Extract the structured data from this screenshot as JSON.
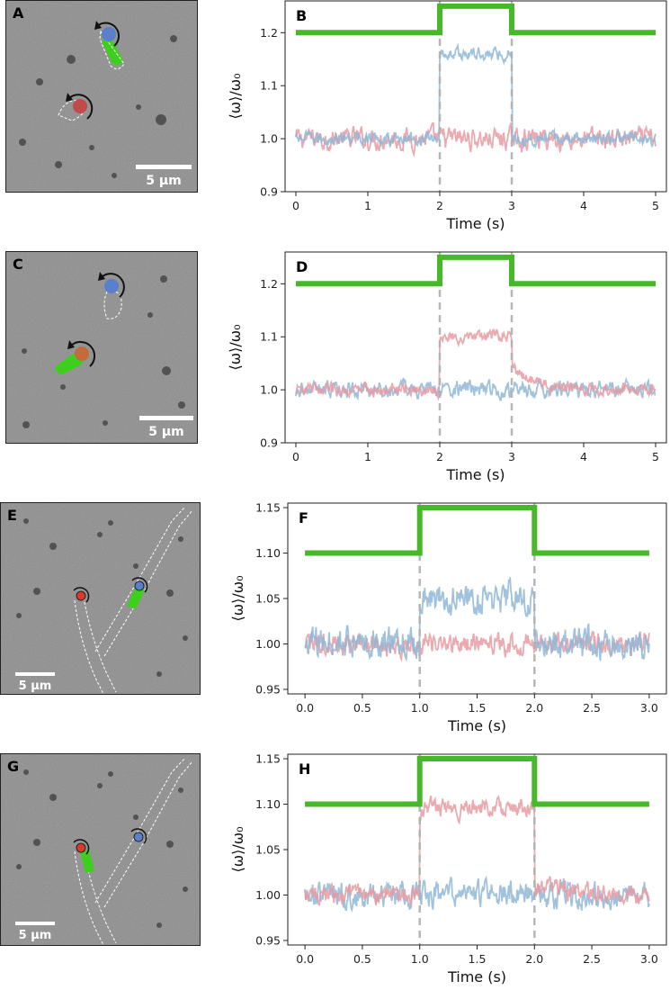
{
  "panels": [
    {
      "letter": "A",
      "scale_label": "5 µm"
    },
    {
      "letter": "C",
      "scale_label": "5 µm"
    },
    {
      "letter": "E",
      "scale_label": "5 µm"
    },
    {
      "letter": "G",
      "scale_label": "5 µm"
    }
  ],
  "chart_data": [
    {
      "type": "line",
      "panel": "B",
      "xlabel": "Time (s)",
      "ylabel": "⟨ω⟩/ω₀",
      "xlim": [
        -0.15,
        5.15
      ],
      "ylim": [
        0.9,
        1.26
      ],
      "xticks": [
        0,
        1,
        2,
        3,
        4,
        5
      ],
      "xtick_labels": [
        "0",
        "1",
        "2",
        "3",
        "4",
        "5"
      ],
      "yticks": [
        0.9,
        1.0,
        1.1,
        1.2
      ],
      "ytick_labels": [
        "0.9",
        "1.0",
        "1.1",
        "1.2"
      ],
      "vlines": [
        2,
        3
      ],
      "stimulus": {
        "low": 1.2,
        "high": 1.25,
        "on": 2,
        "off": 3
      },
      "series": [
        {
          "color": "#e89aa2",
          "baseline": 1.0,
          "stim": 1.0,
          "noise": 0.02,
          "tail": 0.0
        },
        {
          "color": "#8fb7d6",
          "baseline": 1.0,
          "stim": 1.16,
          "noise": 0.012,
          "tail": 0.0
        }
      ]
    },
    {
      "type": "line",
      "panel": "D",
      "xlabel": "Time (s)",
      "ylabel": "⟨ω⟩/ω₀",
      "xlim": [
        -0.15,
        5.15
      ],
      "ylim": [
        0.9,
        1.26
      ],
      "xticks": [
        0,
        1,
        2,
        3,
        4,
        5
      ],
      "xtick_labels": [
        "0",
        "1",
        "2",
        "3",
        "4",
        "5"
      ],
      "yticks": [
        0.9,
        1.0,
        1.1,
        1.2
      ],
      "ytick_labels": [
        "0.9",
        "1.0",
        "1.1",
        "1.2"
      ],
      "vlines": [
        2,
        3
      ],
      "stimulus": {
        "low": 1.2,
        "high": 1.25,
        "on": 2,
        "off": 3
      },
      "series": [
        {
          "color": "#8fb7d6",
          "baseline": 1.0,
          "stim": 1.0,
          "noise": 0.015,
          "tail": 0.0
        },
        {
          "color": "#e89aa2",
          "baseline": 1.0,
          "stim": 1.1,
          "noise": 0.012,
          "tail": 0.04
        }
      ]
    },
    {
      "type": "line",
      "panel": "F",
      "xlabel": "Time (s)",
      "ylabel": "⟨ω⟩/ω₀",
      "xlim": [
        -0.15,
        3.15
      ],
      "ylim": [
        0.945,
        1.155
      ],
      "xticks": [
        0,
        0.5,
        1,
        1.5,
        2,
        2.5,
        3
      ],
      "xtick_labels": [
        "0.0",
        "0.5",
        "1.0",
        "1.5",
        "2.0",
        "2.5",
        "3.0"
      ],
      "yticks": [
        0.95,
        1.0,
        1.05,
        1.1,
        1.15
      ],
      "ytick_labels": [
        "0.95",
        "1.00",
        "1.05",
        "1.10",
        "1.15"
      ],
      "vlines": [
        1,
        2
      ],
      "stimulus": {
        "low": 1.1,
        "high": 1.15,
        "on": 1,
        "off": 2
      },
      "series": [
        {
          "color": "#e89aa2",
          "baseline": 1.0,
          "stim": 1.0,
          "noise": 0.012,
          "tail": 0.0
        },
        {
          "color": "#8fb7d6",
          "baseline": 1.0,
          "stim": 1.05,
          "noise": 0.018,
          "tail": 0.0
        }
      ]
    },
    {
      "type": "line",
      "panel": "H",
      "xlabel": "Time (s)",
      "ylabel": "⟨ω⟩/ω₀",
      "xlim": [
        -0.15,
        3.15
      ],
      "ylim": [
        0.945,
        1.155
      ],
      "xticks": [
        0,
        0.5,
        1,
        1.5,
        2,
        2.5,
        3
      ],
      "xtick_labels": [
        "0.0",
        "0.5",
        "1.0",
        "1.5",
        "2.0",
        "2.5",
        "3.0"
      ],
      "yticks": [
        0.95,
        1.0,
        1.05,
        1.1,
        1.15
      ],
      "ytick_labels": [
        "0.95",
        "1.00",
        "1.05",
        "1.10",
        "1.15"
      ],
      "vlines": [
        1,
        2
      ],
      "stimulus": {
        "low": 1.1,
        "high": 1.15,
        "on": 1,
        "off": 2
      },
      "series": [
        {
          "color": "#8fb7d6",
          "baseline": 1.0,
          "stim": 1.0,
          "noise": 0.014,
          "tail": 0.0
        },
        {
          "color": "#e89aa2",
          "baseline": 1.0,
          "stim": 1.095,
          "noise": 0.01,
          "tail": 0.01
        }
      ]
    }
  ]
}
